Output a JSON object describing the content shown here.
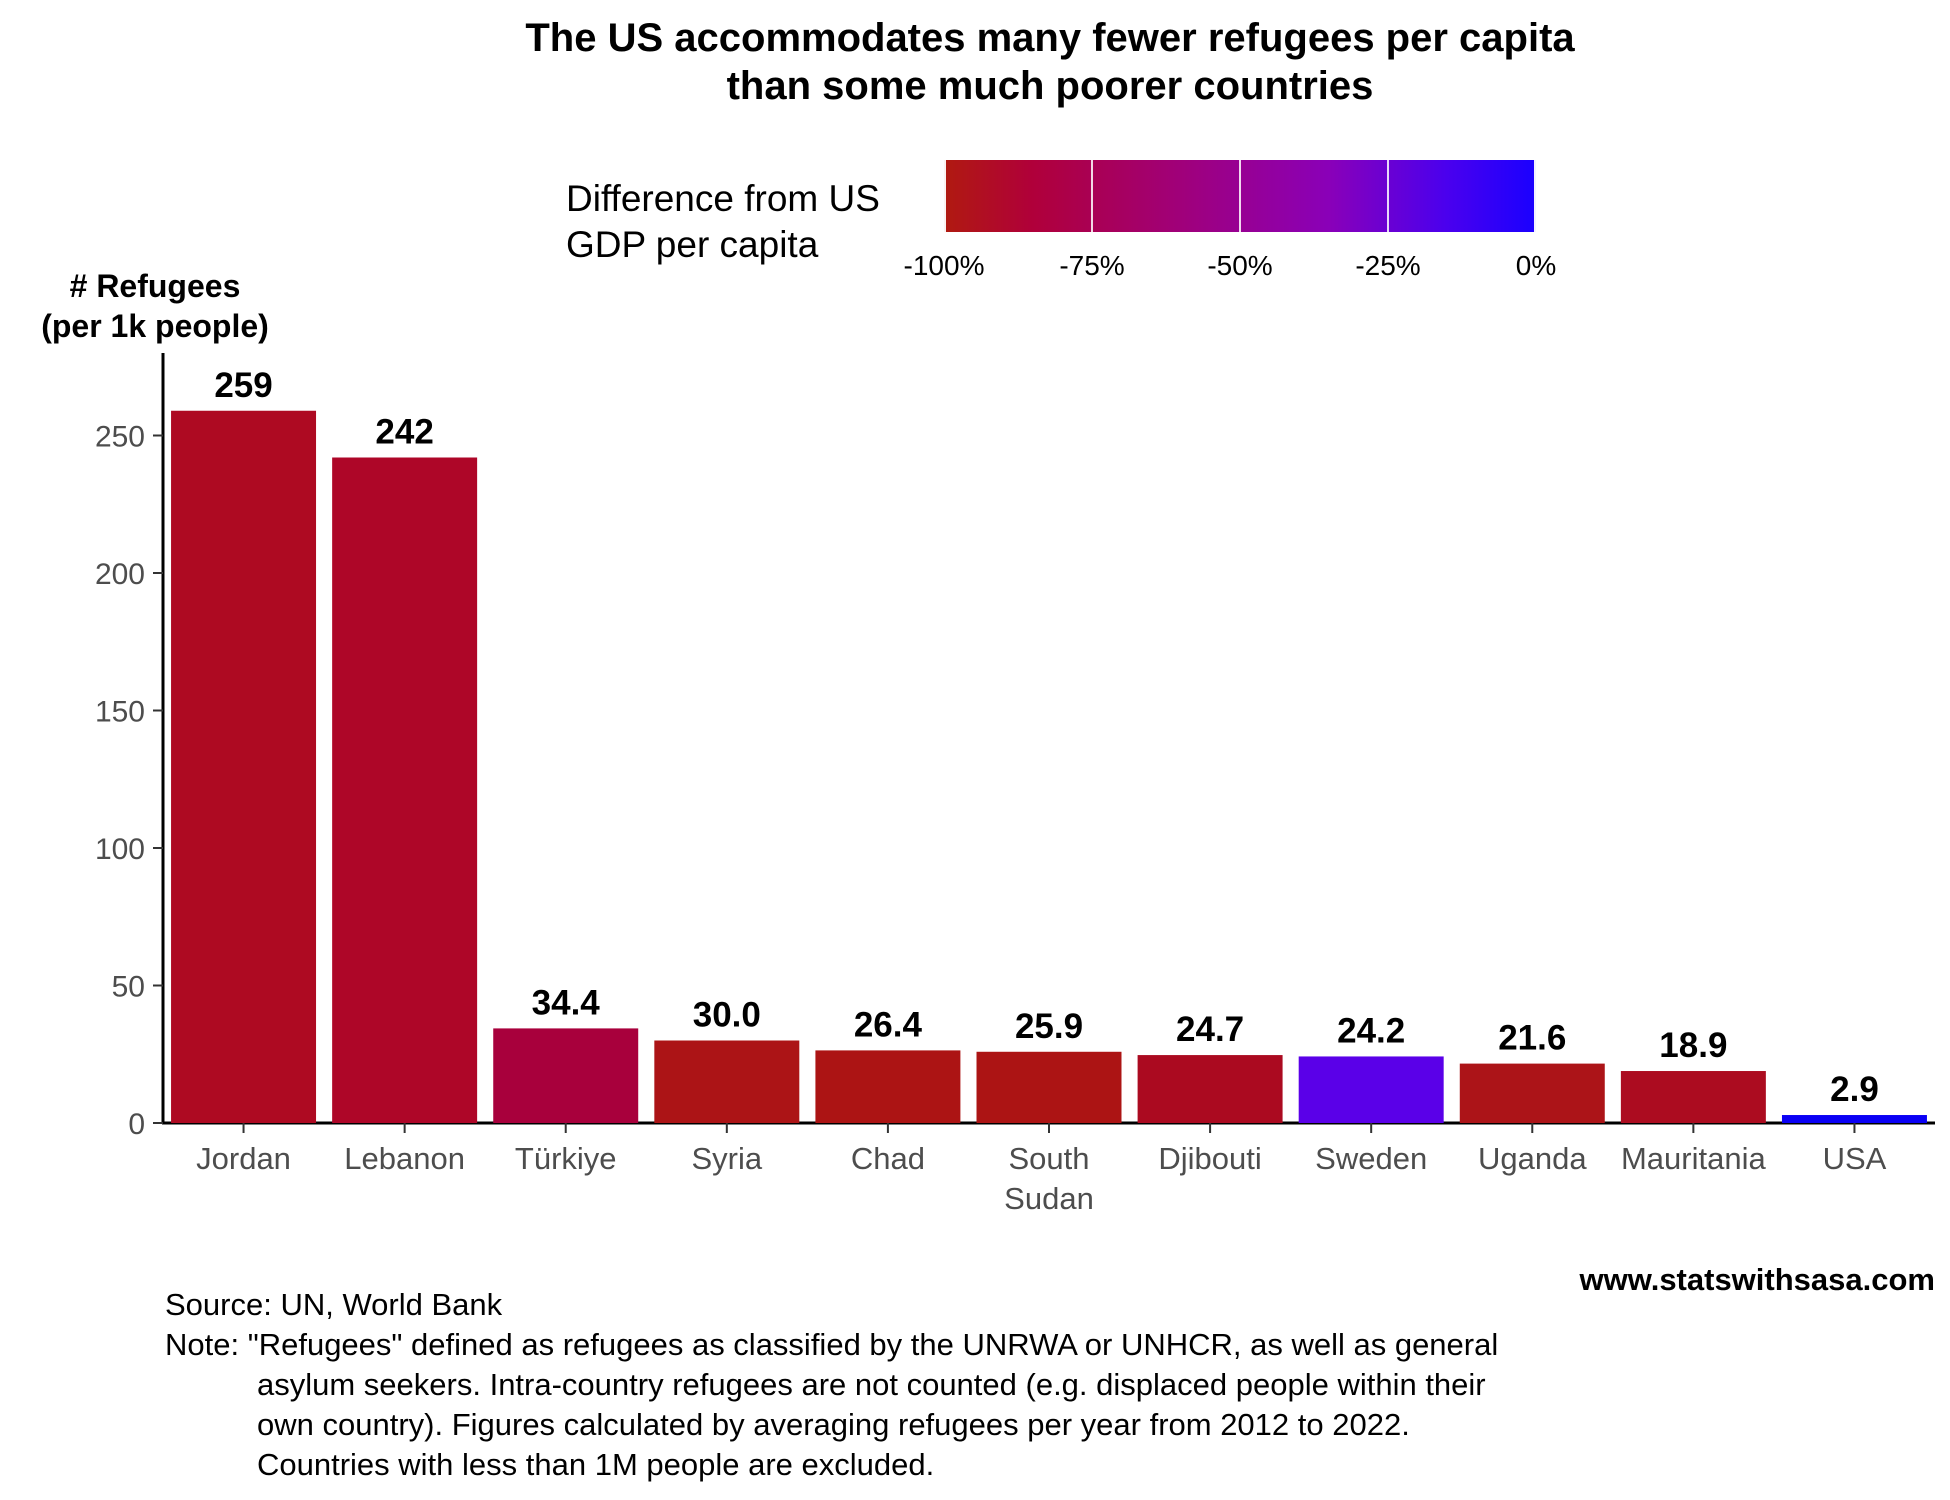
{
  "title_line1": "The US accommodates many fewer refugees per capita",
  "title_line2": "than some much poorer countries",
  "legend": {
    "title_line1": "Difference from US",
    "title_line2": "GDP per capita",
    "ticks": [
      "-100%",
      "-75%",
      "-50%",
      "-25%",
      "0%"
    ],
    "colors": [
      "#b01a10",
      "#b0003a",
      "#a0007a",
      "#8a00b8",
      "#1a00ff"
    ]
  },
  "ylabel_line1": "# Refugees",
  "ylabel_line2": "(per 1k people)",
  "site": "www.statswithsasa.com",
  "source": "Source: UN, World Bank",
  "note_lead": "Note: \"Refugees\" defined as refugees as classified by the UNRWA or UNHCR, as well as general",
  "note_rest": [
    "asylum seekers. Intra-country refugees are not counted (e.g. displaced people within their",
    "own country). Figures calculated by averaging refugees per year from 2012 to 2022.",
    "Countries with less than 1M people are excluded."
  ],
  "chart_data": {
    "type": "bar",
    "categories": [
      "Jordan",
      "Lebanon",
      "Türkiye",
      "Syria",
      "Chad",
      "South\nSudan",
      "Djibouti",
      "Sweden",
      "Uganda",
      "Mauritania",
      "USA"
    ],
    "values": [
      259,
      242,
      34.4,
      30.0,
      26.4,
      25.9,
      24.7,
      24.2,
      21.6,
      18.9,
      2.9
    ],
    "value_labels": [
      "259",
      "242",
      "34.4",
      "30.0",
      "26.4",
      "25.9",
      "24.7",
      "24.2",
      "21.6",
      "18.9",
      "2.9"
    ],
    "bar_colors": [
      "#ae0a22",
      "#ae0628",
      "#a8003c",
      "#ac1416",
      "#ac1414",
      "#ac1414",
      "#ab0a20",
      "#5a00e8",
      "#ac1418",
      "#ac0c20",
      "#0a00f5"
    ],
    "yticks": [
      0,
      50,
      100,
      150,
      200,
      250
    ],
    "ylim": [
      0,
      280
    ],
    "grid": false
  }
}
